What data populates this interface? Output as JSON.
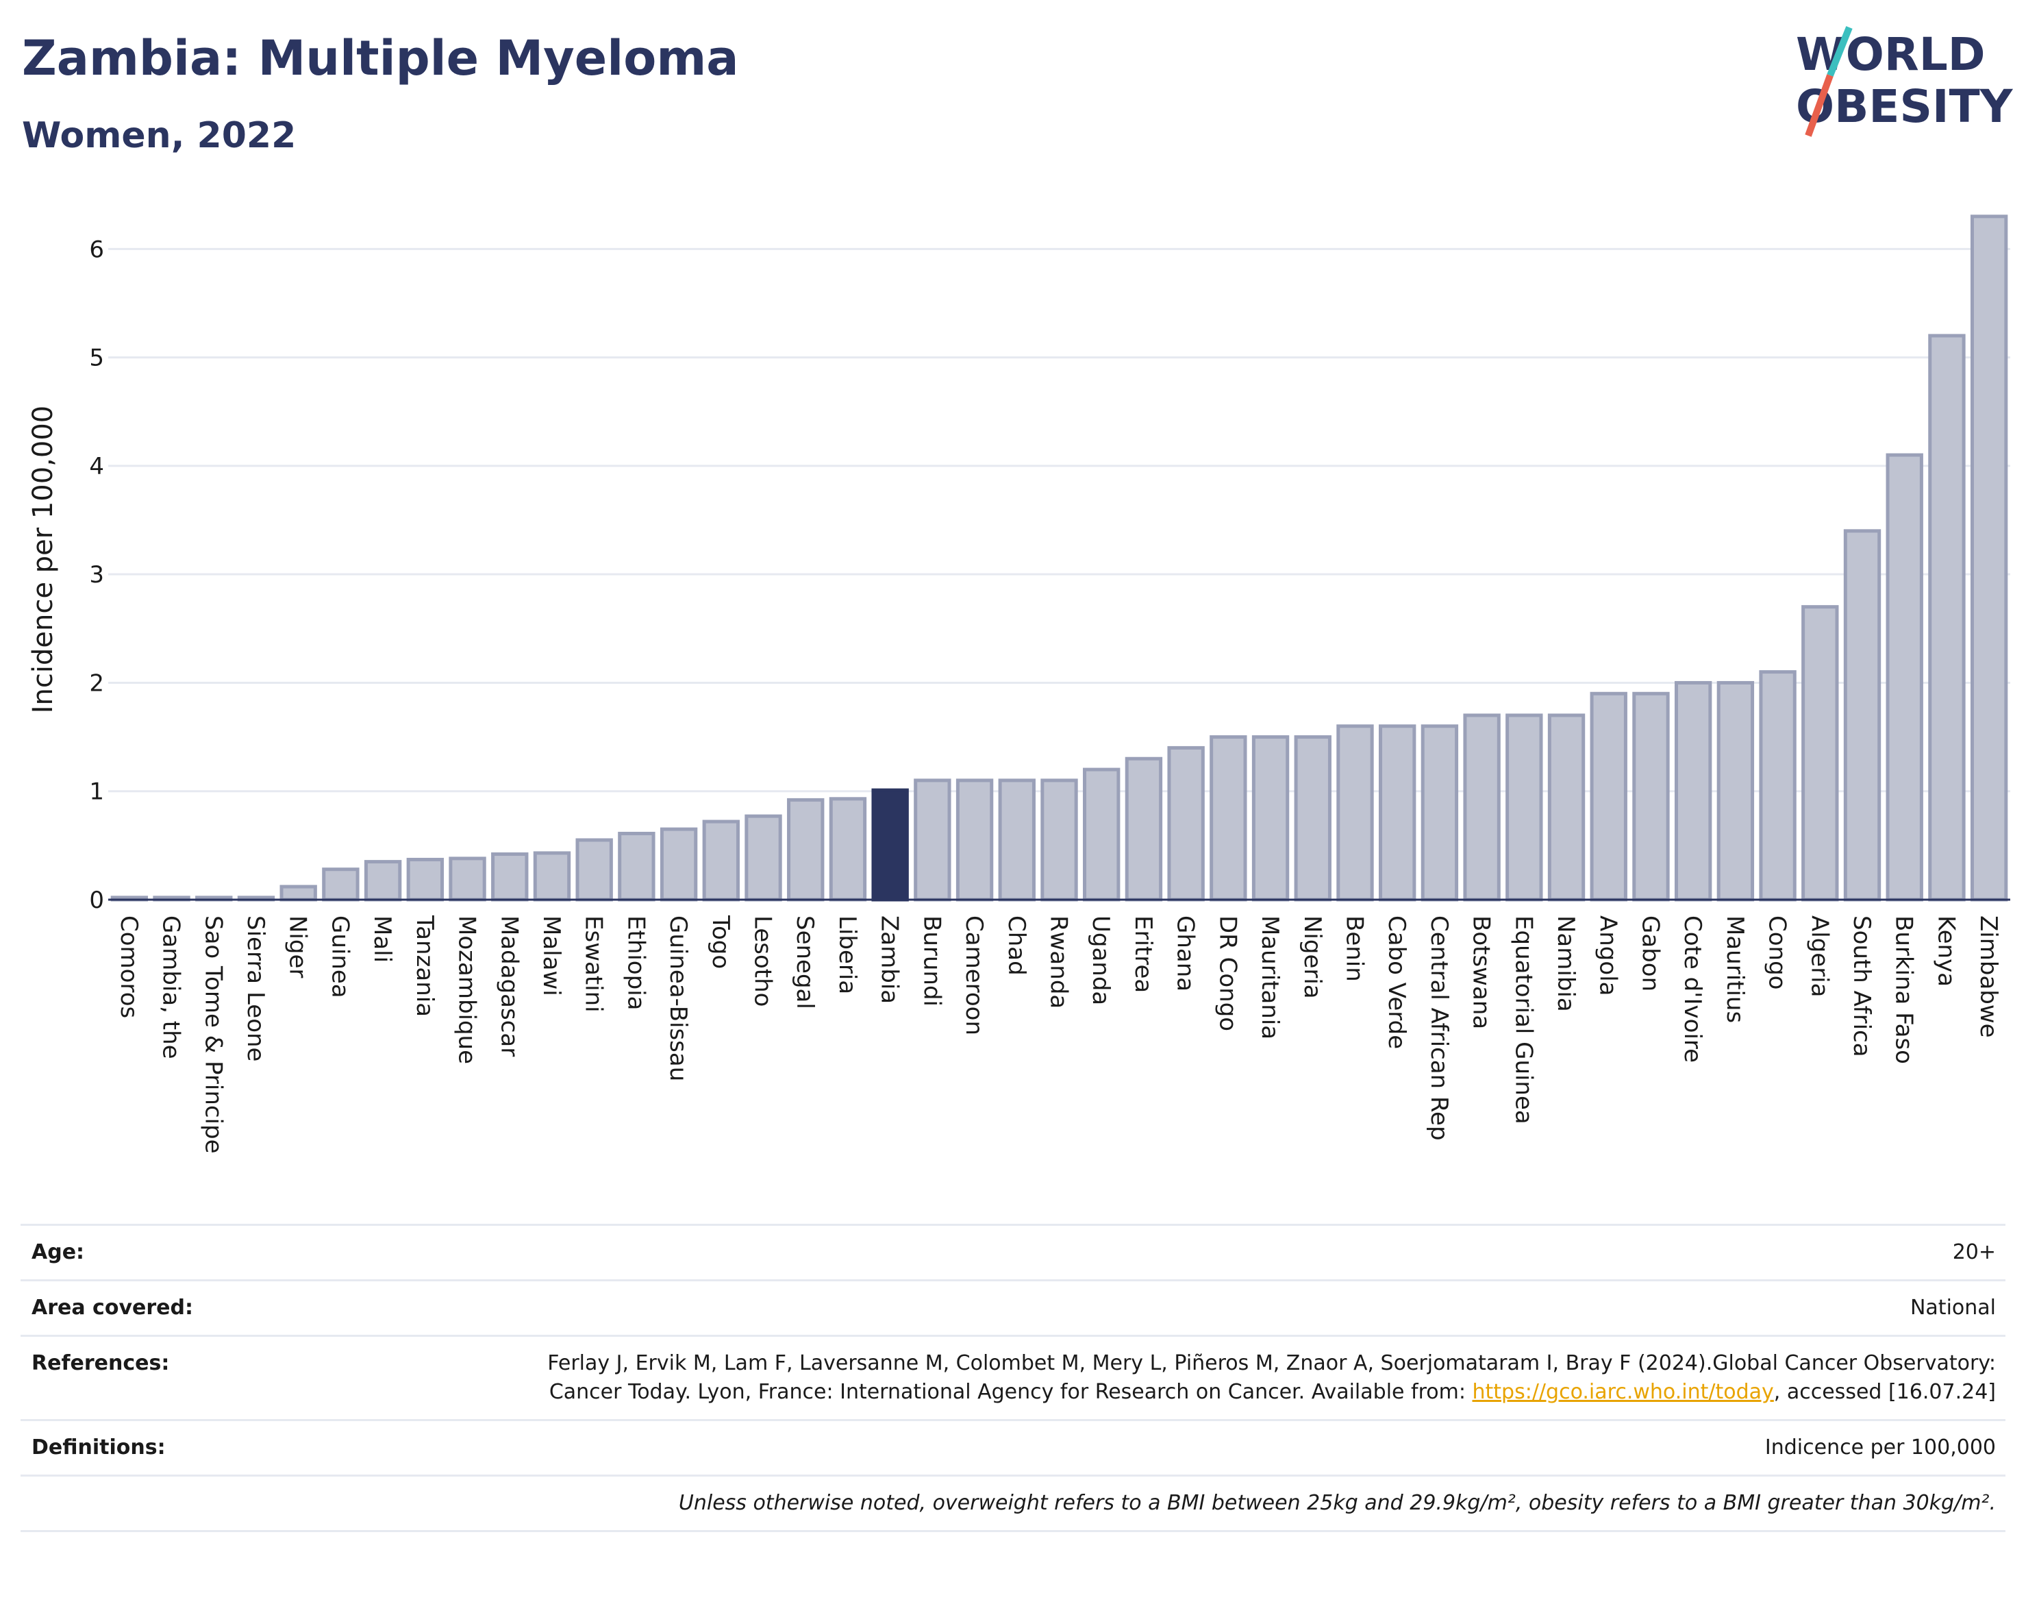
{
  "header": {
    "title": "Zambia: Multiple Myeloma",
    "subtitle": "Women, 2022"
  },
  "logo": {
    "line1": "WORLD",
    "line2": "OBESITY",
    "colors": {
      "text": "#2b3560",
      "slash_top": "#3bbfbf",
      "slash_bottom": "#e8604c"
    }
  },
  "chart_data": {
    "type": "bar",
    "ylabel": "Incidence per 100,000",
    "ylim": [
      0,
      6.4
    ],
    "yticks": [
      0,
      1,
      2,
      3,
      4,
      5,
      6
    ],
    "grid": true,
    "highlight": "Zambia",
    "colors": {
      "bar": "#bfc3d1",
      "bar_edge": "#9aa0b8",
      "highlight": "#2b3560",
      "grid": "#e6e9f0"
    },
    "categories": [
      "Comoros",
      "Gambia, the",
      "Sao Tome & Principe",
      "Sierra Leone",
      "Niger",
      "Guinea",
      "Mali",
      "Tanzania",
      "Mozambique",
      "Madagascar",
      "Malawi",
      "Eswatini",
      "Ethiopia",
      "Guinea-Bissau",
      "Togo",
      "Lesotho",
      "Senegal",
      "Liberia",
      "Zambia",
      "Burundi",
      "Cameroon",
      "Chad",
      "Rwanda",
      "Uganda",
      "Eritrea",
      "Ghana",
      "DR Congo",
      "Mauritania",
      "Nigeria",
      "Benin",
      "Cabo Verde",
      "Central African Rep",
      "Botswana",
      "Equatorial Guinea",
      "Namibia",
      "Angola",
      "Gabon",
      "Cote d'Ivoire",
      "Mauritius",
      "Congo",
      "Algeria",
      "South Africa",
      "Burkina Faso",
      "Kenya",
      "Zimbabwe"
    ],
    "values": [
      0.02,
      0.02,
      0.02,
      0.02,
      0.12,
      0.28,
      0.35,
      0.37,
      0.38,
      0.42,
      0.43,
      0.55,
      0.61,
      0.65,
      0.72,
      0.77,
      0.92,
      0.93,
      1.01,
      1.1,
      1.1,
      1.1,
      1.1,
      1.2,
      1.3,
      1.4,
      1.5,
      1.5,
      1.5,
      1.6,
      1.6,
      1.6,
      1.7,
      1.7,
      1.7,
      1.9,
      1.9,
      2.0,
      2.0,
      2.1,
      2.7,
      3.4,
      4.1,
      5.2,
      6.3
    ]
  },
  "meta": {
    "age_label": "Age:",
    "age_value": "20+",
    "area_label": "Area covered:",
    "area_value": "National",
    "references_label": "References:",
    "references_text_1": "Ferlay J, Ervik M, Lam F, Laversanne M, Colombet M, Mery L, Piñeros M, Znaor A, Soerjomataram I, Bray F (2024).Global Cancer Observatory: Cancer Today. Lyon, France: International Agency for Research on Cancer. Available from:",
    "references_link": "https://gco.iarc.who.int/today",
    "references_text_2": ", accessed [16.07.24]",
    "definitions_label": "Definitions:",
    "definitions_value": "Indicence per 100,000",
    "footnote": "Unless otherwise noted, overweight refers to a BMI between 25kg and 29.9kg/m², obesity refers to a BMI greater than 30kg/m²."
  }
}
